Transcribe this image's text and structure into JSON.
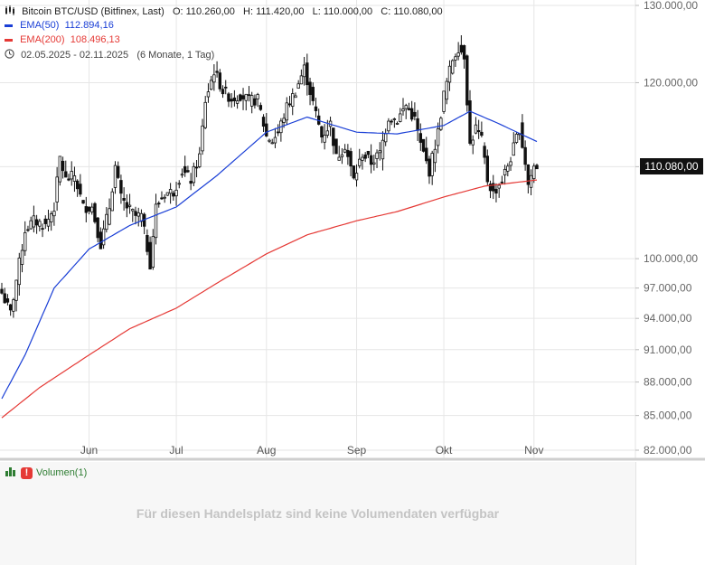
{
  "header": {
    "instrument": "Bitcoin BTC/USD (Bitfinex, Last)",
    "ohlc": "O: 110.260,00   H: 111.420,00   L: 110.000,00   C: 110.080,00",
    "ema50_label": "EMA(50)",
    "ema50_value": "112.894,16",
    "ema200_label": "EMA(200)",
    "ema200_value": "108.496,13",
    "range": "02.05.2025 - 02.11.2025",
    "range_note": "(6 Monate, 1 Tag)"
  },
  "colors": {
    "ema50": "#1a3fd6",
    "ema200": "#e53935",
    "candle": "#111111",
    "grid": "#e6e6e6"
  },
  "price_tag": "110.080,00",
  "volume": {
    "label": "Volumen(1)",
    "warning_icon": "!",
    "message": "Für diesen Handelsplatz sind keine Volumendaten verfügbar"
  },
  "chart_data": {
    "type": "candlestick",
    "title": "Bitcoin BTC/USD (Bitfinex, Last)",
    "y_scale": "log",
    "ylim": [
      82000,
      130000
    ],
    "y_ticks": [
      82000,
      85000,
      88000,
      91000,
      94000,
      97000,
      100000,
      110000,
      120000,
      130000
    ],
    "y_tick_labels": [
      "82.000,00",
      "85.000,00",
      "88.000,00",
      "91.000,00",
      "94.000,00",
      "97.000,00",
      "100.000,00",
      "110.000,00",
      "120.000,00",
      "130.000,00"
    ],
    "x_range": [
      "2025-05-02",
      "2025-11-02"
    ],
    "x_ticks": [
      {
        "label": "Jun",
        "date": "2025-06-01"
      },
      {
        "label": "Jul",
        "date": "2025-07-01"
      },
      {
        "label": "Aug",
        "date": "2025-08-01"
      },
      {
        "label": "Sep",
        "date": "2025-09-01"
      },
      {
        "label": "Okt",
        "date": "2025-10-01"
      },
      {
        "label": "Nov",
        "date": "2025-11-01"
      }
    ],
    "close_anchors": [
      [
        "2025-05-02",
        96500
      ],
      [
        "2025-05-05",
        94500
      ],
      [
        "2025-05-08",
        99500
      ],
      [
        "2025-05-10",
        103000
      ],
      [
        "2025-05-13",
        104000
      ],
      [
        "2025-05-17",
        103500
      ],
      [
        "2025-05-20",
        105500
      ],
      [
        "2025-05-22",
        111000
      ],
      [
        "2025-05-24",
        108500
      ],
      [
        "2025-05-27",
        109000
      ],
      [
        "2025-05-30",
        105500
      ],
      [
        "2025-06-02",
        105500
      ],
      [
        "2025-06-05",
        101500
      ],
      [
        "2025-06-08",
        105500
      ],
      [
        "2025-06-10",
        110000
      ],
      [
        "2025-06-12",
        106500
      ],
      [
        "2025-06-14",
        105500
      ],
      [
        "2025-06-17",
        104500
      ],
      [
        "2025-06-19",
        104500
      ],
      [
        "2025-06-22",
        99500
      ],
      [
        "2025-06-24",
        105500
      ],
      [
        "2025-06-27",
        107000
      ],
      [
        "2025-06-30",
        107200
      ],
      [
        "2025-07-03",
        109500
      ],
      [
        "2025-07-06",
        108500
      ],
      [
        "2025-07-09",
        111200
      ],
      [
        "2025-07-11",
        117800
      ],
      [
        "2025-07-14",
        121500
      ],
      [
        "2025-07-17",
        119000
      ],
      [
        "2025-07-20",
        118000
      ],
      [
        "2025-07-23",
        118500
      ],
      [
        "2025-07-26",
        117800
      ],
      [
        "2025-07-29",
        117900
      ],
      [
        "2025-08-01",
        113500
      ],
      [
        "2025-08-03",
        113000
      ],
      [
        "2025-08-05",
        114000
      ],
      [
        "2025-08-08",
        117000
      ],
      [
        "2025-08-11",
        119000
      ],
      [
        "2025-08-14",
        121800
      ],
      [
        "2025-08-17",
        117500
      ],
      [
        "2025-08-20",
        113500
      ],
      [
        "2025-08-23",
        115000
      ],
      [
        "2025-08-25",
        111000
      ],
      [
        "2025-08-28",
        112500
      ],
      [
        "2025-08-31",
        108500
      ],
      [
        "2025-09-03",
        111500
      ],
      [
        "2025-09-06",
        110500
      ],
      [
        "2025-09-09",
        111500
      ],
      [
        "2025-09-12",
        115800
      ],
      [
        "2025-09-15",
        115500
      ],
      [
        "2025-09-18",
        117200
      ],
      [
        "2025-09-21",
        115500
      ],
      [
        "2025-09-23",
        112500
      ],
      [
        "2025-09-26",
        109500
      ],
      [
        "2025-09-29",
        114000
      ],
      [
        "2025-10-01",
        118500
      ],
      [
        "2025-10-04",
        123000
      ],
      [
        "2025-10-06",
        124500
      ],
      [
        "2025-10-08",
        123500
      ],
      [
        "2025-10-10",
        112500
      ],
      [
        "2025-10-12",
        114500
      ],
      [
        "2025-10-14",
        113000
      ],
      [
        "2025-10-16",
        108500
      ],
      [
        "2025-10-18",
        107000
      ],
      [
        "2025-10-21",
        108500
      ],
      [
        "2025-10-24",
        111000
      ],
      [
        "2025-10-27",
        114500
      ],
      [
        "2025-10-29",
        110500
      ],
      [
        "2025-10-30",
        108000
      ],
      [
        "2025-11-01",
        110000
      ],
      [
        "2025-11-02",
        110080
      ]
    ],
    "ema50_anchors": [
      [
        "2025-05-02",
        86500
      ],
      [
        "2025-05-10",
        90500
      ],
      [
        "2025-05-20",
        97000
      ],
      [
        "2025-06-01",
        101000
      ],
      [
        "2025-06-15",
        103500
      ],
      [
        "2025-07-01",
        105500
      ],
      [
        "2025-07-15",
        109000
      ],
      [
        "2025-08-01",
        114000
      ],
      [
        "2025-08-15",
        115800
      ],
      [
        "2025-09-01",
        114000
      ],
      [
        "2025-09-15",
        113800
      ],
      [
        "2025-10-01",
        114800
      ],
      [
        "2025-10-10",
        116500
      ],
      [
        "2025-10-20",
        115000
      ],
      [
        "2025-11-02",
        112894
      ]
    ],
    "ema200_anchors": [
      [
        "2025-05-02",
        84800
      ],
      [
        "2025-05-15",
        87500
      ],
      [
        "2025-06-01",
        90500
      ],
      [
        "2025-06-15",
        93000
      ],
      [
        "2025-07-01",
        95000
      ],
      [
        "2025-07-15",
        97500
      ],
      [
        "2025-08-01",
        100500
      ],
      [
        "2025-08-15",
        102500
      ],
      [
        "2025-09-01",
        104000
      ],
      [
        "2025-09-15",
        105000
      ],
      [
        "2025-10-01",
        106600
      ],
      [
        "2025-10-15",
        107800
      ],
      [
        "2025-11-02",
        108496
      ]
    ]
  }
}
